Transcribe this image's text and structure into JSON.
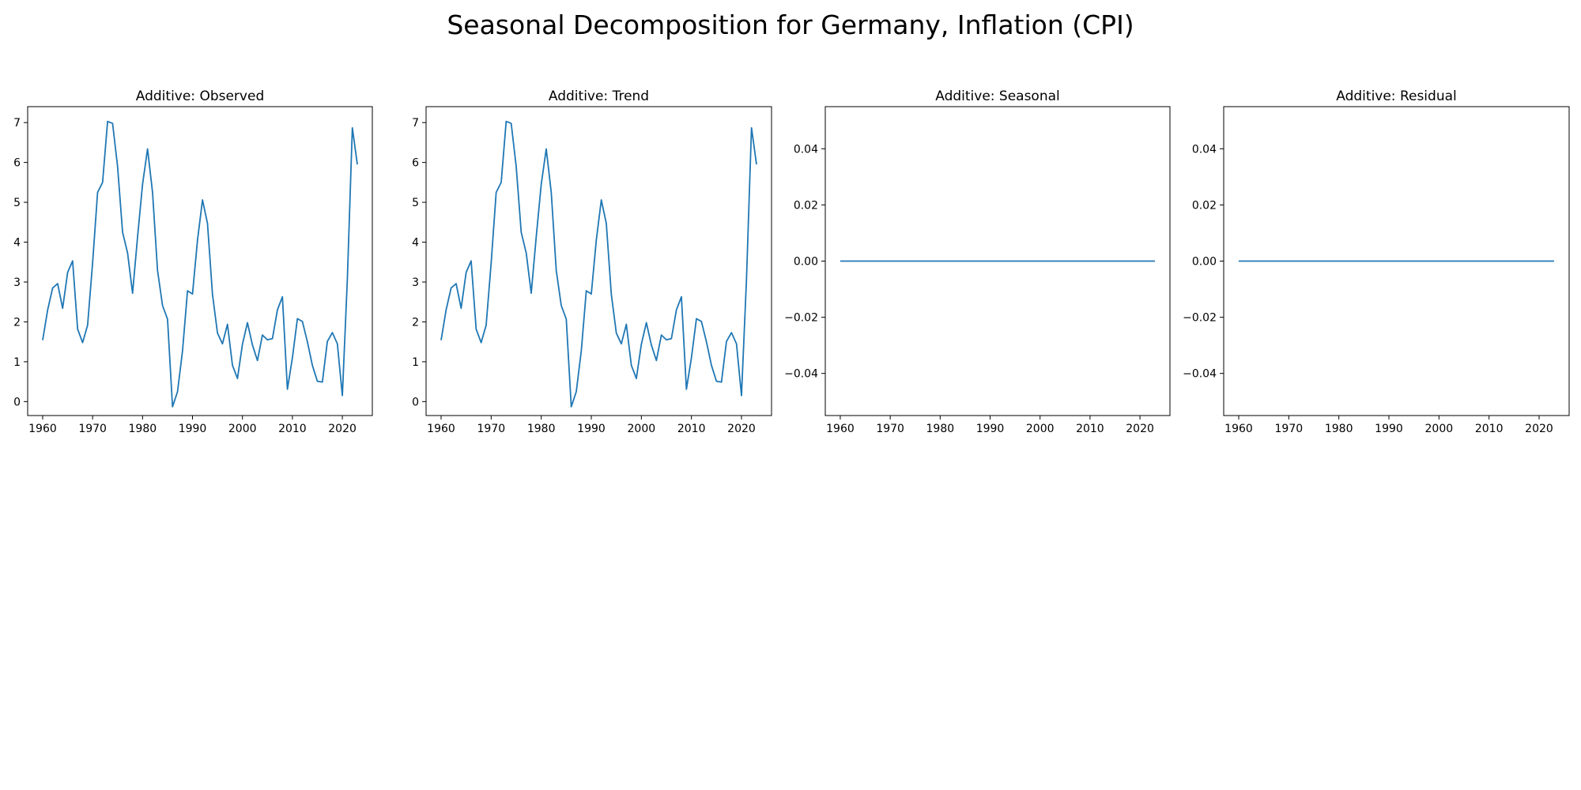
{
  "suptitle": "Seasonal Decomposition for Germany, Inflation (CPI)",
  "colors": {
    "line": "#1f77b4",
    "axes": "#000000"
  },
  "chart_data": [
    {
      "type": "line",
      "title": "Additive: Observed",
      "xlabel": "",
      "ylabel": "",
      "xlim": [
        1957,
        2026
      ],
      "ylim": [
        -0.35,
        7.4
      ],
      "xticks": [
        1960,
        1970,
        1980,
        1990,
        2000,
        2010,
        2020
      ],
      "yticks": [
        0,
        1,
        2,
        3,
        4,
        5,
        6,
        7
      ],
      "ytick_labels": [
        "0",
        "1",
        "2",
        "3",
        "4",
        "5",
        "6",
        "7"
      ],
      "grid": false,
      "x": [
        1960,
        1961,
        1962,
        1963,
        1964,
        1965,
        1966,
        1967,
        1968,
        1969,
        1970,
        1971,
        1972,
        1973,
        1974,
        1975,
        1976,
        1977,
        1978,
        1979,
        1980,
        1981,
        1982,
        1983,
        1984,
        1985,
        1986,
        1987,
        1988,
        1989,
        1990,
        1991,
        1992,
        1993,
        1994,
        1995,
        1996,
        1997,
        1998,
        1999,
        2000,
        2001,
        2002,
        2003,
        2004,
        2005,
        2006,
        2007,
        2008,
        2009,
        2010,
        2011,
        2012,
        2013,
        2014,
        2015,
        2016,
        2017,
        2018,
        2019,
        2020,
        2021,
        2022,
        2023
      ],
      "y": [
        1.54,
        2.3,
        2.85,
        2.96,
        2.34,
        3.24,
        3.53,
        1.82,
        1.48,
        1.92,
        3.48,
        5.25,
        5.5,
        7.03,
        6.98,
        5.9,
        4.25,
        3.73,
        2.72,
        4.13,
        5.45,
        6.34,
        5.25,
        3.29,
        2.41,
        2.07,
        -0.13,
        0.25,
        1.27,
        2.78,
        2.7,
        4.05,
        5.06,
        4.47,
        2.69,
        1.72,
        1.45,
        1.94,
        0.91,
        0.58,
        1.44,
        1.98,
        1.42,
        1.03,
        1.67,
        1.55,
        1.58,
        2.3,
        2.63,
        0.31,
        1.1,
        2.08,
        2.01,
        1.5,
        0.91,
        0.51,
        0.49,
        1.51,
        1.73,
        1.45,
        0.15,
        3.07,
        6.87,
        5.95
      ]
    },
    {
      "type": "line",
      "title": "Additive: Trend",
      "xlabel": "",
      "ylabel": "",
      "xlim": [
        1957,
        2026
      ],
      "ylim": [
        -0.35,
        7.4
      ],
      "xticks": [
        1960,
        1970,
        1980,
        1990,
        2000,
        2010,
        2020
      ],
      "yticks": [
        0,
        1,
        2,
        3,
        4,
        5,
        6,
        7
      ],
      "ytick_labels": [
        "0",
        "1",
        "2",
        "3",
        "4",
        "5",
        "6",
        "7"
      ],
      "grid": false,
      "x": [
        1960,
        1961,
        1962,
        1963,
        1964,
        1965,
        1966,
        1967,
        1968,
        1969,
        1970,
        1971,
        1972,
        1973,
        1974,
        1975,
        1976,
        1977,
        1978,
        1979,
        1980,
        1981,
        1982,
        1983,
        1984,
        1985,
        1986,
        1987,
        1988,
        1989,
        1990,
        1991,
        1992,
        1993,
        1994,
        1995,
        1996,
        1997,
        1998,
        1999,
        2000,
        2001,
        2002,
        2003,
        2004,
        2005,
        2006,
        2007,
        2008,
        2009,
        2010,
        2011,
        2012,
        2013,
        2014,
        2015,
        2016,
        2017,
        2018,
        2019,
        2020,
        2021,
        2022,
        2023
      ],
      "y": [
        1.54,
        2.3,
        2.85,
        2.96,
        2.34,
        3.24,
        3.53,
        1.82,
        1.48,
        1.92,
        3.48,
        5.25,
        5.5,
        7.03,
        6.98,
        5.9,
        4.25,
        3.73,
        2.72,
        4.13,
        5.45,
        6.34,
        5.25,
        3.29,
        2.41,
        2.07,
        -0.13,
        0.25,
        1.27,
        2.78,
        2.7,
        4.05,
        5.06,
        4.47,
        2.69,
        1.72,
        1.45,
        1.94,
        0.91,
        0.58,
        1.44,
        1.98,
        1.42,
        1.03,
        1.67,
        1.55,
        1.58,
        2.3,
        2.63,
        0.31,
        1.1,
        2.08,
        2.01,
        1.5,
        0.91,
        0.51,
        0.49,
        1.51,
        1.73,
        1.45,
        0.15,
        3.07,
        6.87,
        5.95
      ]
    },
    {
      "type": "line",
      "title": "Additive: Seasonal",
      "xlabel": "",
      "ylabel": "",
      "xlim": [
        1957,
        2026
      ],
      "ylim": [
        -0.055,
        0.055
      ],
      "xticks": [
        1960,
        1970,
        1980,
        1990,
        2000,
        2010,
        2020
      ],
      "yticks": [
        0.04,
        0.02,
        0.0,
        -0.02,
        -0.04
      ],
      "ytick_labels": [
        "0.04",
        "0.02",
        "0.00",
        "−0.02",
        "−0.04"
      ],
      "grid": false,
      "x": [
        1960,
        2023
      ],
      "y": [
        0.0,
        0.0
      ]
    },
    {
      "type": "line",
      "title": "Additive: Residual",
      "xlabel": "",
      "ylabel": "",
      "xlim": [
        1957,
        2026
      ],
      "ylim": [
        -0.055,
        0.055
      ],
      "xticks": [
        1960,
        1970,
        1980,
        1990,
        2000,
        2010,
        2020
      ],
      "yticks": [
        0.04,
        0.02,
        0.0,
        -0.02,
        -0.04
      ],
      "ytick_labels": [
        "0.04",
        "0.02",
        "0.00",
        "−0.02",
        "−0.04"
      ],
      "grid": false,
      "x": [
        1960,
        2023
      ],
      "y": [
        0.0,
        0.0
      ]
    }
  ]
}
